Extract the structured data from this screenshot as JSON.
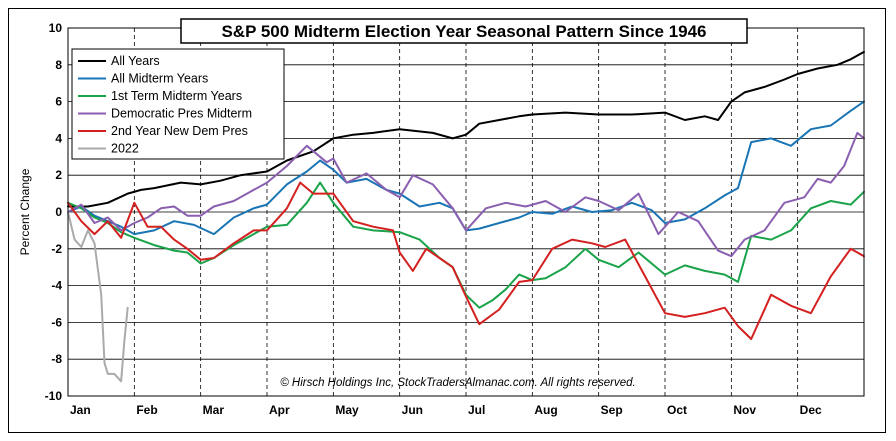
{
  "chart_data": {
    "type": "line",
    "title": "S&P 500 Midterm Election Year  Seasonal Pattern Since 1946",
    "ylabel": "Percent Change",
    "xlabel": "",
    "ylim": [
      -10,
      10
    ],
    "yticks": [
      10,
      8,
      6,
      4,
      2,
      0,
      -2,
      -4,
      -6,
      -8,
      -10
    ],
    "months": [
      "Jan",
      "Feb",
      "Mar",
      "Apr",
      "May",
      "Jun",
      "Jul",
      "Aug",
      "Sep",
      "Oct",
      "Nov",
      "Dec"
    ],
    "x_unit": "month index (0 = start of Jan, 12 = end of Dec)",
    "copyright": "© Hirsch Holdings Inc, StockTradersAlmanac.com. All rights reserved.",
    "series": [
      {
        "name": "All Years",
        "color": "#000000",
        "x": [
          0,
          0.3,
          0.6,
          0.9,
          1.1,
          1.3,
          1.7,
          2.0,
          2.3,
          2.6,
          3.0,
          3.3,
          3.7,
          4.0,
          4.3,
          4.6,
          5.0,
          5.5,
          5.8,
          6.0,
          6.2,
          6.5,
          6.8,
          7.0,
          7.5,
          8.0,
          8.5,
          9.0,
          9.3,
          9.6,
          9.8,
          10.0,
          10.2,
          10.5,
          10.8,
          11.0,
          11.3,
          11.6,
          11.8,
          12.0
        ],
        "y": [
          0.3,
          0.3,
          0.5,
          1.0,
          1.2,
          1.3,
          1.6,
          1.5,
          1.7,
          2.0,
          2.2,
          2.8,
          3.3,
          4.0,
          4.2,
          4.3,
          4.5,
          4.3,
          4.0,
          4.2,
          4.8,
          5.0,
          5.2,
          5.3,
          5.4,
          5.3,
          5.3,
          5.4,
          5.0,
          5.2,
          5.0,
          6.0,
          6.5,
          6.8,
          7.2,
          7.5,
          7.8,
          8.0,
          8.3,
          8.7
        ]
      },
      {
        "name": "All Midterm Years",
        "color": "#1a75b5",
        "x": [
          0,
          0.2,
          0.4,
          0.6,
          0.8,
          1.0,
          1.3,
          1.6,
          1.9,
          2.2,
          2.5,
          2.8,
          3.0,
          3.3,
          3.6,
          3.8,
          4.0,
          4.2,
          4.5,
          4.8,
          5.0,
          5.3,
          5.6,
          5.8,
          6.0,
          6.2,
          6.5,
          6.8,
          7.0,
          7.3,
          7.6,
          7.9,
          8.2,
          8.5,
          8.8,
          9.0,
          9.3,
          9.6,
          9.9,
          10.1,
          10.3,
          10.6,
          10.9,
          11.2,
          11.5,
          11.8,
          12.0
        ],
        "y": [
          0.0,
          0.3,
          -0.2,
          -0.5,
          -0.8,
          -1.2,
          -1.0,
          -0.5,
          -0.7,
          -1.2,
          -0.3,
          0.2,
          0.4,
          1.5,
          2.2,
          2.8,
          2.3,
          1.6,
          1.8,
          1.2,
          1.0,
          0.3,
          0.5,
          0.2,
          -1.0,
          -0.9,
          -0.6,
          -0.3,
          0.0,
          -0.1,
          0.3,
          0.0,
          0.1,
          0.5,
          0.1,
          -0.6,
          -0.4,
          0.2,
          0.9,
          1.3,
          3.8,
          4.0,
          3.6,
          4.5,
          4.7,
          5.5,
          6.0
        ]
      },
      {
        "name": "1st Term Midterm Years",
        "color": "#1aa34a",
        "x": [
          0,
          0.2,
          0.4,
          0.6,
          0.8,
          1.0,
          1.3,
          1.6,
          1.8,
          2.0,
          2.2,
          2.5,
          2.8,
          3.0,
          3.3,
          3.6,
          3.8,
          4.0,
          4.3,
          4.6,
          5.0,
          5.3,
          5.6,
          5.8,
          6.0,
          6.2,
          6.4,
          6.6,
          6.8,
          7.0,
          7.2,
          7.5,
          7.8,
          8.0,
          8.3,
          8.6,
          9.0,
          9.3,
          9.6,
          9.9,
          10.1,
          10.3,
          10.6,
          10.9,
          11.2,
          11.5,
          11.8,
          12.0
        ],
        "y": [
          0.5,
          0.2,
          -0.3,
          -0.6,
          -1.1,
          -1.4,
          -1.8,
          -2.1,
          -2.2,
          -2.8,
          -2.5,
          -1.8,
          -1.2,
          -0.8,
          -0.7,
          0.5,
          1.6,
          0.5,
          -0.8,
          -1.0,
          -1.1,
          -1.5,
          -2.5,
          -3.0,
          -4.5,
          -5.2,
          -4.8,
          -4.2,
          -3.4,
          -3.7,
          -3.6,
          -3.0,
          -2.0,
          -2.6,
          -3.0,
          -2.2,
          -3.4,
          -2.9,
          -3.2,
          -3.4,
          -3.8,
          -1.3,
          -1.5,
          -1.0,
          0.2,
          0.6,
          0.4,
          1.1
        ]
      },
      {
        "name": "Democratic Pres Midterm",
        "color": "#8b5fb0",
        "x": [
          0,
          0.2,
          0.4,
          0.6,
          0.8,
          1.0,
          1.2,
          1.4,
          1.6,
          1.8,
          2.0,
          2.2,
          2.5,
          2.8,
          3.0,
          3.3,
          3.6,
          3.9,
          4.0,
          4.2,
          4.5,
          4.8,
          5.0,
          5.2,
          5.5,
          5.8,
          6.0,
          6.3,
          6.6,
          6.9,
          7.2,
          7.5,
          7.8,
          8.0,
          8.3,
          8.6,
          8.9,
          9.2,
          9.5,
          9.8,
          10.0,
          10.2,
          10.5,
          10.8,
          11.1,
          11.3,
          11.5,
          11.7,
          11.9,
          12.0
        ],
        "y": [
          0.0,
          0.4,
          -0.6,
          -0.3,
          -1.0,
          -0.6,
          -0.3,
          0.2,
          0.3,
          -0.2,
          -0.2,
          0.3,
          0.6,
          1.2,
          1.6,
          2.5,
          3.6,
          2.7,
          2.9,
          1.6,
          2.1,
          1.2,
          0.8,
          2.0,
          1.5,
          0.2,
          -1.0,
          0.2,
          0.5,
          0.3,
          0.6,
          0.0,
          0.8,
          0.6,
          0.1,
          1.0,
          -1.2,
          0.0,
          -0.5,
          -2.1,
          -2.4,
          -1.5,
          -1.0,
          0.5,
          0.8,
          1.8,
          1.6,
          2.5,
          4.3,
          4.0
        ]
      },
      {
        "name": "2nd Year New Dem Pres",
        "color": "#d4201f",
        "x": [
          0,
          0.2,
          0.4,
          0.6,
          0.8,
          1.0,
          1.2,
          1.4,
          1.6,
          1.8,
          2.0,
          2.2,
          2.5,
          2.8,
          3.0,
          3.3,
          3.5,
          3.7,
          4.0,
          4.3,
          4.6,
          4.9,
          5.0,
          5.2,
          5.4,
          5.6,
          5.8,
          6.0,
          6.2,
          6.5,
          6.8,
          7.0,
          7.3,
          7.6,
          7.9,
          8.1,
          8.4,
          8.7,
          9.0,
          9.3,
          9.6,
          9.9,
          10.1,
          10.3,
          10.6,
          10.9,
          11.2,
          11.5,
          11.8,
          12.0
        ],
        "y": [
          0.5,
          -0.5,
          -1.2,
          -0.5,
          -1.4,
          0.5,
          -0.8,
          -0.8,
          -1.5,
          -2.0,
          -2.6,
          -2.5,
          -1.7,
          -1.0,
          -1.0,
          0.2,
          1.6,
          1.0,
          1.0,
          -0.5,
          -0.8,
          -1.0,
          -2.2,
          -3.2,
          -2.0,
          -2.5,
          -3.0,
          -4.6,
          -6.1,
          -5.3,
          -3.8,
          -3.7,
          -2.0,
          -1.5,
          -1.7,
          -1.9,
          -1.5,
          -3.5,
          -5.5,
          -5.7,
          -5.5,
          -5.2,
          -6.2,
          -6.9,
          -4.5,
          -5.1,
          -5.5,
          -3.5,
          -2.0,
          -2.4
        ]
      },
      {
        "name": "2022",
        "color": "#aaaaaa",
        "x": [
          0,
          0.1,
          0.2,
          0.3,
          0.4,
          0.5,
          0.55,
          0.6,
          0.7,
          0.8,
          0.85,
          0.9
        ],
        "y": [
          0.0,
          -1.5,
          -1.9,
          -1.0,
          -1.7,
          -4.5,
          -8.2,
          -8.8,
          -8.8,
          -9.2,
          -7.0,
          -5.2
        ]
      }
    ]
  }
}
